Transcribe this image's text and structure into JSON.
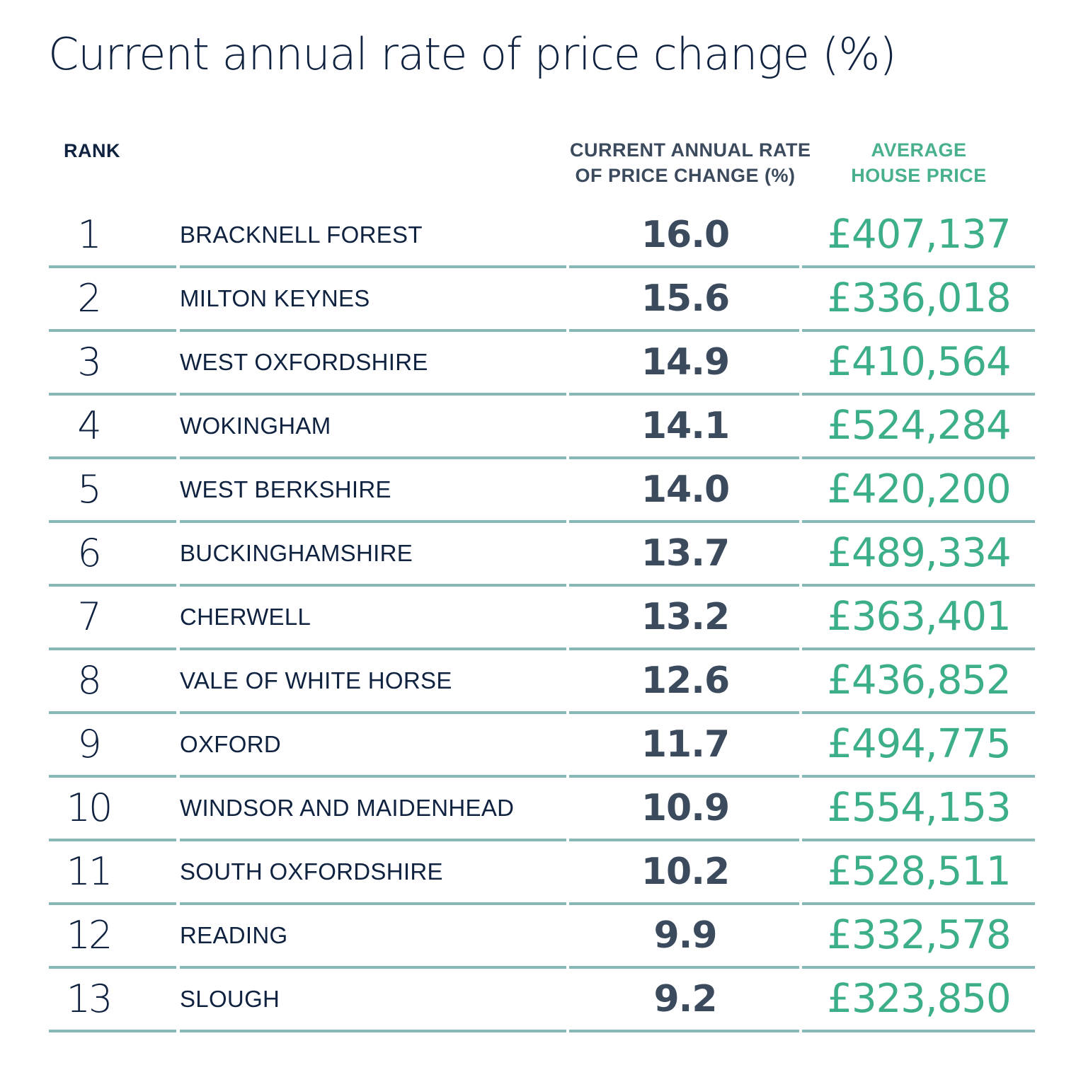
{
  "title": "Current annual rate of price change (%)",
  "headers": {
    "rank": "RANK",
    "rate_line1": "CURRENT ANNUAL RATE",
    "rate_line2": "OF PRICE CHANGE (%)",
    "price_line1": "AVERAGE",
    "price_line2": "HOUSE PRICE"
  },
  "colors": {
    "navy": "#0f2240",
    "slate": "#3b4a5c",
    "green": "#3dae8a",
    "rule": "#85b8b6"
  },
  "chart_data": {
    "type": "table",
    "title": "Current annual rate of price change (%)",
    "columns": [
      "RANK",
      "",
      "CURRENT ANNUAL RATE OF PRICE CHANGE (%)",
      "AVERAGE HOUSE PRICE"
    ],
    "rows": [
      {
        "rank": "1",
        "name": "BRACKNELL FOREST",
        "rate": "16.0",
        "price": "£407,137"
      },
      {
        "rank": "2",
        "name": "MILTON KEYNES",
        "rate": "15.6",
        "price": "£336,018"
      },
      {
        "rank": "3",
        "name": "WEST OXFORDSHIRE",
        "rate": "14.9",
        "price": "£410,564"
      },
      {
        "rank": "4",
        "name": "WOKINGHAM",
        "rate": "14.1",
        "price": "£524,284"
      },
      {
        "rank": "5",
        "name": "WEST BERKSHIRE",
        "rate": "14.0",
        "price": "£420,200"
      },
      {
        "rank": "6",
        "name": "BUCKINGHAMSHIRE",
        "rate": "13.7",
        "price": "£489,334"
      },
      {
        "rank": "7",
        "name": "CHERWELL",
        "rate": "13.2",
        "price": "£363,401"
      },
      {
        "rank": "8",
        "name": "VALE OF WHITE HORSE",
        "rate": "12.6",
        "price": "£436,852"
      },
      {
        "rank": "9",
        "name": "OXFORD",
        "rate": "11.7",
        "price": "£494,775"
      },
      {
        "rank": "10",
        "name": "WINDSOR AND MAIDENHEAD",
        "rate": "10.9",
        "price": "£554,153"
      },
      {
        "rank": "11",
        "name": "SOUTH OXFORDSHIRE",
        "rate": "10.2",
        "price": "£528,511"
      },
      {
        "rank": "12",
        "name": "READING",
        "rate": "9.9",
        "price": "£332,578"
      },
      {
        "rank": "13",
        "name": "SLOUGH",
        "rate": "9.2",
        "price": "£323,850"
      }
    ]
  }
}
